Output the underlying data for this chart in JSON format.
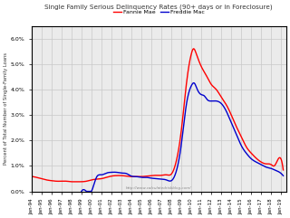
{
  "title": "Single Family Serious Delinquency Rates (90+ days or in Foreclosure)",
  "ylabel": "Percent of Total Number of Single-Family Loans",
  "watermark": "http://www.calculatedriskblog.com/",
  "legend_fannie": "Fannie Mae",
  "legend_freddie": "Freddie Mac",
  "fannie_color": "#ff0000",
  "freddie_color": "#0000cc",
  "background_color": "#ffffff",
  "grid_color": "#c8c8c8",
  "ylim": [
    0.0,
    0.065
  ],
  "ytick_labels": [
    "0.0%",
    "1.0%",
    "2.0%",
    "3.0%",
    "4.0%",
    "5.0%",
    "6.0%"
  ],
  "fannie_t": [
    1994.0,
    1994.5,
    1995.0,
    1995.5,
    1996.0,
    1996.5,
    1997.0,
    1997.5,
    1998.0,
    1998.5,
    1999.0,
    1999.5,
    2000.0,
    2000.5,
    2001.0,
    2001.5,
    2002.0,
    2002.5,
    2003.0,
    2003.5,
    2004.0,
    2004.5,
    2005.0,
    2005.5,
    2006.0,
    2006.5,
    2007.0,
    2007.5,
    2008.0,
    2008.5,
    2009.0,
    2009.5,
    2010.0,
    2010.2,
    2010.5,
    2011.0,
    2011.5,
    2012.0,
    2012.5,
    2013.0,
    2013.5,
    2014.0,
    2014.5,
    2015.0,
    2015.5,
    2016.0,
    2016.5,
    2017.0,
    2017.5,
    2018.0,
    2018.3,
    2018.6,
    2019.0
  ],
  "fannie_y": [
    0.0059,
    0.0055,
    0.005,
    0.0045,
    0.0042,
    0.004,
    0.004,
    0.004,
    0.0038,
    0.0038,
    0.0038,
    0.004,
    0.0045,
    0.0048,
    0.005,
    0.0055,
    0.006,
    0.0062,
    0.0062,
    0.006,
    0.0058,
    0.0058,
    0.0058,
    0.006,
    0.0062,
    0.0063,
    0.0063,
    0.0065,
    0.0068,
    0.012,
    0.024,
    0.042,
    0.054,
    0.056,
    0.054,
    0.049,
    0.0455,
    0.042,
    0.04,
    0.037,
    0.034,
    0.03,
    0.0255,
    0.0215,
    0.0175,
    0.015,
    0.013,
    0.0115,
    0.0108,
    0.0105,
    0.01,
    0.012,
    0.0125
  ],
  "freddie_t": [
    1999.0,
    1999.5,
    2000.0,
    2000.5,
    2001.0,
    2001.5,
    2002.0,
    2002.5,
    2003.0,
    2003.5,
    2004.0,
    2004.5,
    2005.0,
    2005.5,
    2006.0,
    2006.5,
    2007.0,
    2007.5,
    2008.0,
    2008.5,
    2009.0,
    2009.5,
    2010.0,
    2010.3,
    2010.6,
    2011.0,
    2011.3,
    2011.6,
    2012.0,
    2012.5,
    2013.0,
    2013.5,
    2014.0,
    2014.5,
    2015.0,
    2015.5,
    2016.0,
    2016.5,
    2017.0,
    2017.5,
    2018.0,
    2018.3,
    2018.6,
    2019.0
  ],
  "freddie_y": [
    0.0,
    0.0,
    0.0,
    0.0055,
    0.0065,
    0.0072,
    0.0075,
    0.0075,
    0.0072,
    0.007,
    0.006,
    0.0058,
    0.0055,
    0.0055,
    0.0052,
    0.005,
    0.0048,
    0.0045,
    0.0042,
    0.008,
    0.0185,
    0.034,
    0.0415,
    0.0425,
    0.04,
    0.038,
    0.0375,
    0.036,
    0.0355,
    0.0355,
    0.0345,
    0.0315,
    0.027,
    0.0225,
    0.018,
    0.015,
    0.0128,
    0.0115,
    0.0105,
    0.0095,
    0.009,
    0.0085,
    0.008,
    0.007
  ]
}
